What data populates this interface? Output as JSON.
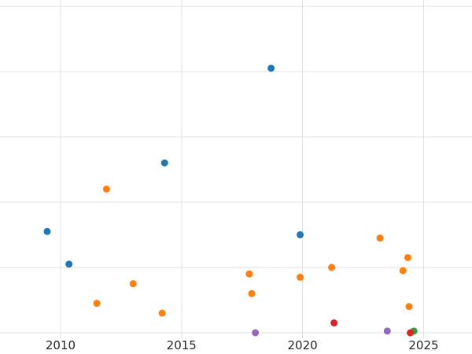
{
  "figure": {
    "background": "#ffffff",
    "grid_color": "#e2e2e2",
    "tick_label_color": "#262626"
  },
  "chart_data": {
    "type": "scatter",
    "title": "",
    "xlabel": "",
    "ylabel": "",
    "grid": true,
    "legend": "none",
    "xlim": [
      2007.5,
      2027.0
    ],
    "ylim": [
      -0.17,
      10.19
    ],
    "x_tick_values": [
      2010,
      2015,
      2020,
      2025
    ],
    "x_tick_labels": [
      "2010",
      "2015",
      "2020",
      "2025"
    ],
    "y_tick_labels": [],
    "y_gridline_values": [
      0,
      2,
      4,
      6,
      8,
      10
    ],
    "marker_radius": 4.5,
    "series": [
      {
        "name": "series-blue",
        "color": "#1f77b4",
        "points": [
          {
            "x": 2009.45,
            "y": 3.1
          },
          {
            "x": 2010.35,
            "y": 2.1
          },
          {
            "x": 2014.3,
            "y": 5.2
          },
          {
            "x": 2018.7,
            "y": 8.1
          },
          {
            "x": 2019.9,
            "y": 3.0
          }
        ]
      },
      {
        "name": "series-orange",
        "color": "#ff7f0e",
        "points": [
          {
            "x": 2011.5,
            "y": 0.9
          },
          {
            "x": 2011.9,
            "y": 4.4
          },
          {
            "x": 2013.0,
            "y": 1.5
          },
          {
            "x": 2014.2,
            "y": 0.6
          },
          {
            "x": 2017.8,
            "y": 1.8
          },
          {
            "x": 2017.9,
            "y": 1.2
          },
          {
            "x": 2019.9,
            "y": 1.7
          },
          {
            "x": 2021.2,
            "y": 2.0
          },
          {
            "x": 2023.2,
            "y": 2.9
          },
          {
            "x": 2024.15,
            "y": 1.9
          },
          {
            "x": 2024.35,
            "y": 2.3
          },
          {
            "x": 2024.4,
            "y": 0.8
          }
        ]
      },
      {
        "name": "series-green",
        "color": "#2ca02c",
        "points": [
          {
            "x": 2024.6,
            "y": 0.05
          }
        ]
      },
      {
        "name": "series-red",
        "color": "#d62728",
        "points": [
          {
            "x": 2021.3,
            "y": 0.3
          },
          {
            "x": 2024.45,
            "y": 0.0
          }
        ]
      },
      {
        "name": "series-purple",
        "color": "#9467bd",
        "points": [
          {
            "x": 2018.05,
            "y": 0.0
          },
          {
            "x": 2023.5,
            "y": 0.05
          }
        ]
      }
    ]
  }
}
